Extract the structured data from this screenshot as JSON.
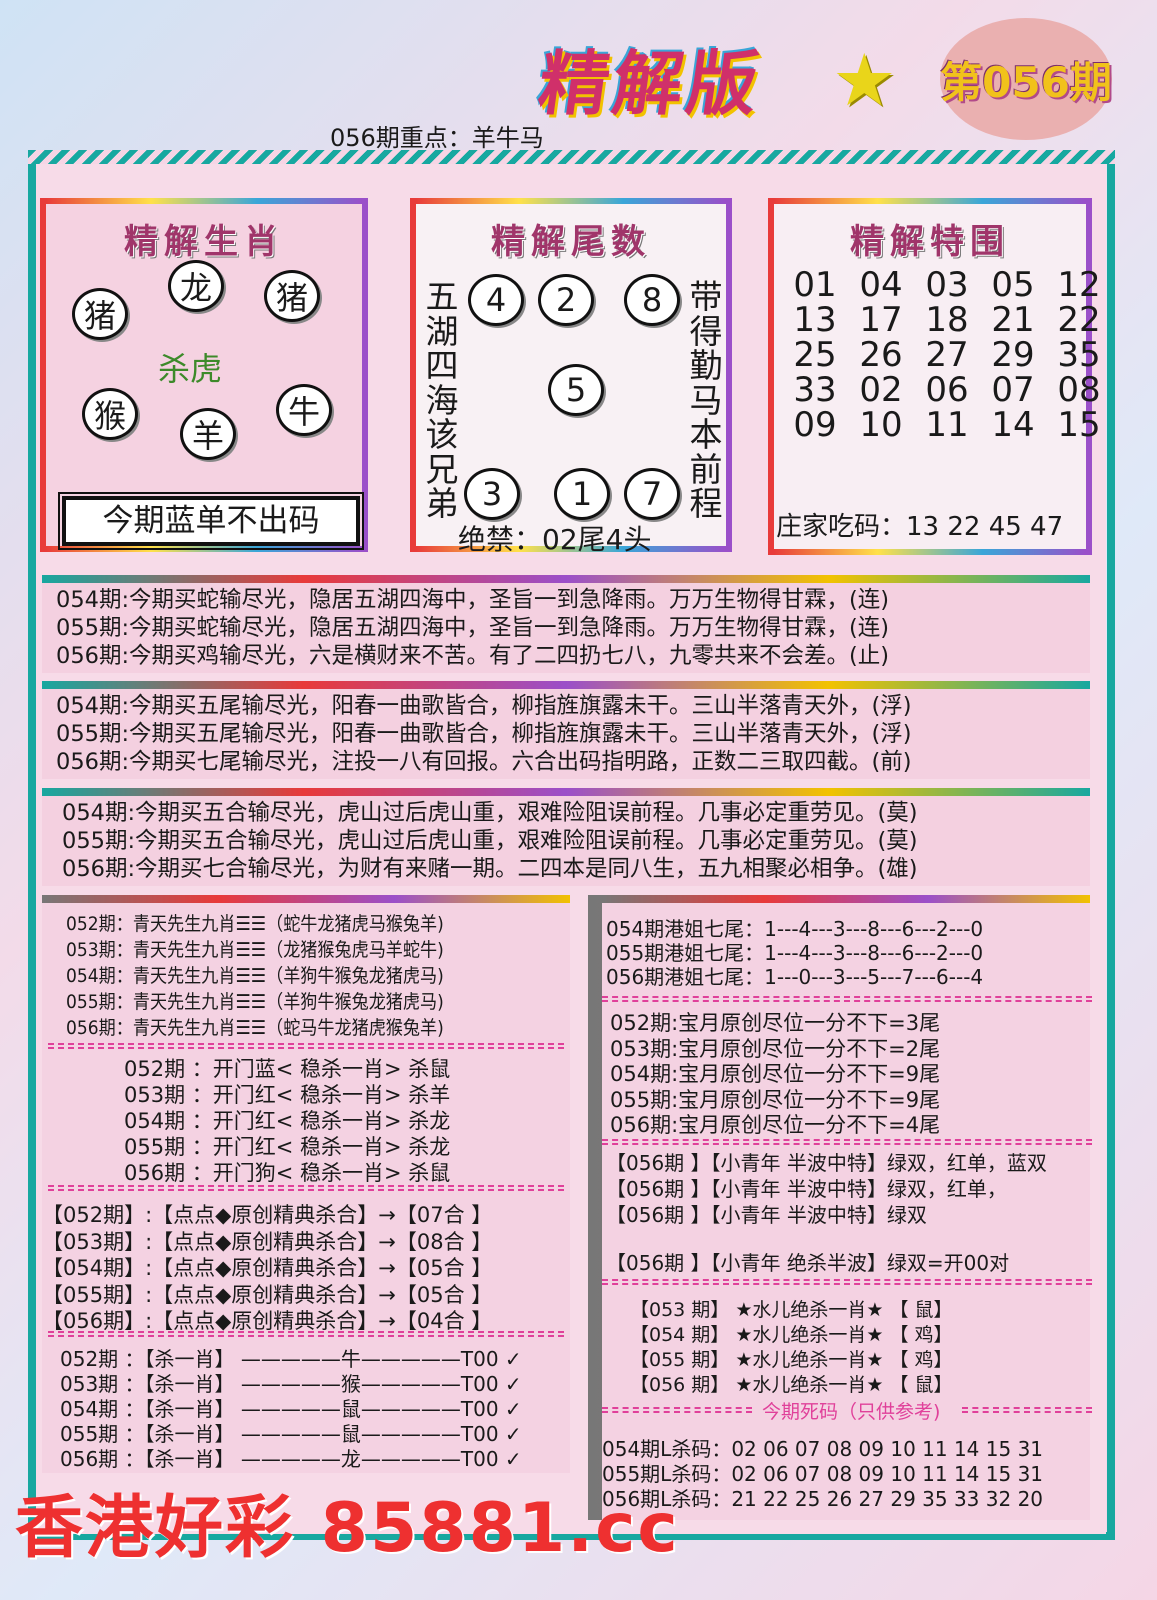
{
  "header": {
    "logo": "精解版",
    "star": "★",
    "issue": "第056期",
    "focus": "056期重点：羊牛马"
  },
  "zodiac_panel": {
    "title": "精解生肖",
    "circles": [
      "猪",
      "龙",
      "猪",
      "猴",
      "羊",
      "牛"
    ],
    "kill": "杀虎",
    "box": "今期蓝单不出码"
  },
  "tail_panel": {
    "title": "精解尾数",
    "left_verse": "五湖四海该兄弟",
    "right_verse": "带得勤马本前程",
    "circles": [
      "4",
      "2",
      "8",
      "5",
      "3",
      "1",
      "7"
    ],
    "ban": "绝禁：02尾4头"
  },
  "special_panel": {
    "title": "精解特围",
    "numbers": [
      "01",
      "04",
      "03",
      "05",
      "12",
      "13",
      "17",
      "18",
      "21",
      "22",
      "25",
      "26",
      "27",
      "29",
      "35",
      "33",
      "02",
      "06",
      "07",
      "08",
      "09",
      "10",
      "11",
      "14",
      "15"
    ],
    "banker": "庄家吃码：13 22 45 47"
  },
  "poems": [
    [
      "054期:今期买蛇输尽光，隐居五湖四海中，圣旨一到急降雨。万万生物得甘霖，(连)",
      "055期:今期买蛇输尽光，隐居五湖四海中，圣旨一到急降雨。万万生物得甘霖，(连)",
      "056期:今期买鸡输尽光，六是横财来不苦。有了二四扔七八，九零共来不会差。(止)"
    ],
    [
      "054期:今期买五尾输尽光，阳春一曲歌皆合，柳指旌旗露未干。三山半落青天外，(浮)",
      "055期:今期买五尾输尽光，阳春一曲歌皆合，柳指旌旗露未干。三山半落青天外，(浮)",
      "056期:今期买七尾输尽光，注投一八有回报。六合出码指明路，正数二三取四截。(前)"
    ],
    [
      "054期:今期买五合输尽光，虎山过后虎山重，艰难险阻误前程。几事必定重劳见。(莫)",
      "055期:今期买五合输尽光，虎山过后虎山重，艰难险阻误前程。几事必定重劳见。(莫)",
      "056期:今期买七合输尽光，为财有来赌一期。二四本是同八生，五九相聚必相争。(雄)"
    ]
  ],
  "left": {
    "nine": [
      "052期：青天先生九肖☰☰（蛇牛龙猪虎马猴兔羊)",
      "053期：青天先生九肖☰☰（龙猪猴兔虎马羊蛇牛)",
      "054期：青天先生九肖☰☰（羊狗牛猴兔龙猪虎马)",
      "055期：青天先生九肖☰☰（羊狗牛猴兔龙猪虎马)",
      "056期：青天先生九肖☰☰（蛇马牛龙猪虎猴兔羊)"
    ],
    "door": [
      "052期 ：开门蓝<  稳杀一肖>  杀鼠",
      "053期 ：开门红<  稳杀一肖>  杀羊",
      "054期 ：开门红<  稳杀一肖>  杀龙",
      "055期 ：开门红<  稳杀一肖>  杀龙",
      "056期 ：开门狗<  稳杀一肖>  杀鼠"
    ],
    "combo": [
      "【052期】:【点点◆原创精典杀合】→【07合 】",
      "【053期】:【点点◆原创精典杀合】→【08合 】",
      "【054期】:【点点◆原创精典杀合】→【05合 】",
      "【055期】:【点点◆原创精典杀合】→【05合 】",
      "【056期】:【点点◆原创精典杀合】→【04合 】"
    ],
    "kill_one": [
      "052期 ：【杀一肖】 —————牛—————T00 ✓",
      "053期 ：【杀一肖】 —————猴—————T00 ✓",
      "054期 ：【杀一肖】 —————鼠—————T00 ✓",
      "055期 ：【杀一肖】 —————鼠—————T00 ✓",
      "056期 ：【杀一肖】 —————龙—————T00 ✓"
    ]
  },
  "right": {
    "seven": [
      "054期港姐七尾：1---4---3---8---6---2---0",
      "055期港姐七尾：1---4---3---8---6---2---0",
      "056期港姐七尾：1---0---3---5---7---6---4"
    ],
    "baoyue": [
      "052期:宝月原创尽位一分不下=3尾",
      "053期:宝月原创尽位一分不下=2尾",
      "054期:宝月原创尽位一分不下=9尾",
      "055期:宝月原创尽位一分不下=9尾",
      "056期:宝月原创尽位一分不下=4尾"
    ],
    "wave": [
      "【056期 】【小青年  半波中特】绿双，红单，蓝双",
      "【056期 】【小青年  半波中特】绿双，红单，",
      "【056期 】【小青年  半波中特】绿双"
    ],
    "wave_kill": "【056期 】【小青年  绝杀半波】绿双=开00对",
    "shuier": [
      "【053 期】  ★水儿绝杀一肖★  【 鼠】",
      "【054 期】  ★水儿绝杀一肖★  【 鸡】",
      "【055 期】  ★水儿绝杀一肖★  【 鸡】",
      "【056 期】  ★水儿绝杀一肖★  【 鼠】"
    ],
    "dead_title": "今期死码（只供参考)",
    "dead": [
      "054期L杀码：02  06  07  08  09  10  11  14  15  31",
      "055期L杀码：02  06  07  08  09  10  11  14  15  31",
      "056期L杀码：21  22  25  26  27  29  35  33  32  20"
    ]
  },
  "watermark": "香港好彩 85881.cc",
  "colors": {
    "frame": "#17a8a0",
    "panel": "#f5d2e1",
    "watermark": "#ee3030",
    "kill_text": "#3d8a2a",
    "dead_title": "#e0409a"
  }
}
